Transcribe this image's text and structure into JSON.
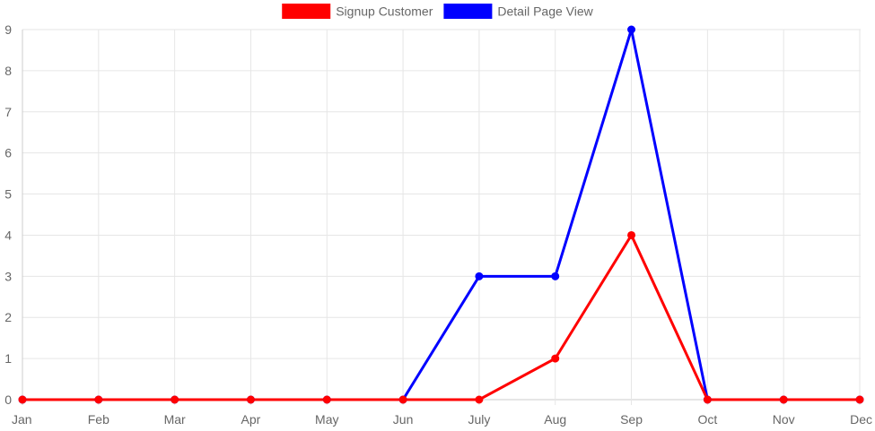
{
  "chart_data": {
    "type": "line",
    "categories": [
      "Jan",
      "Feb",
      "Mar",
      "Apr",
      "May",
      "Jun",
      "July",
      "Aug",
      "Sep",
      "Oct",
      "Nov",
      "Dec"
    ],
    "series": [
      {
        "name": "Signup Customer",
        "color": "#ff0000",
        "values": [
          0,
          0,
          0,
          0,
          0,
          0,
          0,
          1,
          4,
          0,
          0,
          0
        ]
      },
      {
        "name": "Detail Page View",
        "color": "#0000ff",
        "values": [
          0,
          0,
          0,
          0,
          0,
          0,
          3,
          3,
          9,
          0,
          0,
          0
        ]
      }
    ],
    "ylim": [
      0,
      9
    ],
    "yticks": [
      0,
      1,
      2,
      3,
      4,
      5,
      6,
      7,
      8,
      9
    ],
    "grid": true,
    "legend_position": "top"
  }
}
